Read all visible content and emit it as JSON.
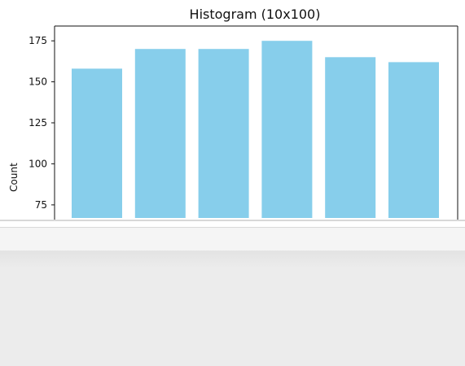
{
  "window": {
    "title": "Histogram (10x100)"
  },
  "chart_data": {
    "type": "bar",
    "title": "Histogram (10x100)",
    "ylabel": "Count",
    "xlabel": "",
    "values": [
      158,
      170,
      170,
      175,
      165,
      162
    ],
    "ylim": [
      67,
      184
    ],
    "yticks": [
      75,
      100,
      125,
      150,
      175
    ],
    "ytick_labels": [
      "75",
      "100",
      "125",
      "150",
      "175"
    ],
    "bar_color": "#87ceeb",
    "grid": false
  },
  "colors": {
    "background": "#ececec",
    "plot_background": "#ffffff",
    "bar": "#87ceeb",
    "axis": "#111111"
  }
}
